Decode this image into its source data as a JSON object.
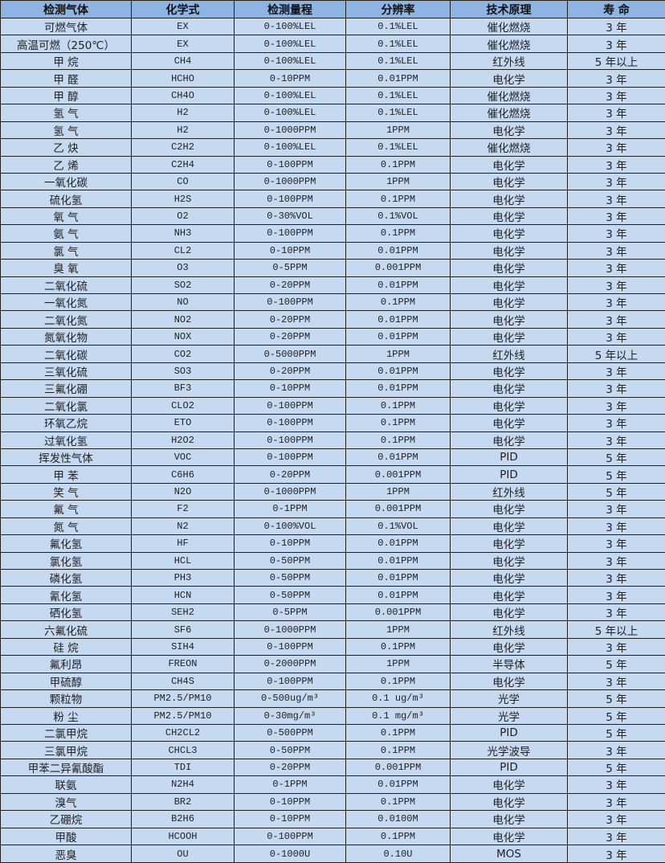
{
  "table": {
    "headers": [
      "检测气体",
      "化学式",
      "检测量程",
      "分辨率",
      "技术原理",
      "寿  命"
    ],
    "rows": [
      [
        "可燃气体",
        "EX",
        "0-100%LEL",
        "0.1%LEL",
        "催化燃烧",
        "3 年"
      ],
      [
        "高温可燃（250℃）",
        "EX",
        "0-100%LEL",
        "0.1%LEL",
        "催化燃烧",
        "3 年"
      ],
      [
        "甲 烷",
        "CH4",
        "0-100%LEL",
        "0.1%LEL",
        "红外线",
        "5 年以上"
      ],
      [
        "甲 醛",
        "HCHO",
        "0-10PPM",
        "0.01PPM",
        "电化学",
        "3 年"
      ],
      [
        "甲 醇",
        "CH4O",
        "0-100%LEL",
        "0.1%LEL",
        "催化燃烧",
        "3 年"
      ],
      [
        "氢 气",
        "H2",
        "0-100%LEL",
        "0.1%LEL",
        "催化燃烧",
        "3 年"
      ],
      [
        "氢 气",
        "H2",
        "0-1000PPM",
        "1PPM",
        "电化学",
        "3 年"
      ],
      [
        "乙 炔",
        "C2H2",
        "0-100%LEL",
        "0.1%LEL",
        "催化燃烧",
        "3 年"
      ],
      [
        "乙 烯",
        "C2H4",
        "0-100PPM",
        "0.1PPM",
        "电化学",
        "3 年"
      ],
      [
        "一氧化碳",
        "CO",
        "0-1000PPM",
        "1PPM",
        "电化学",
        "3 年"
      ],
      [
        "硫化氢",
        "H2S",
        "0-100PPM",
        "0.1PPM",
        "电化学",
        "3 年"
      ],
      [
        "氧 气",
        "O2",
        "0-30%VOL",
        "0.1%VOL",
        "电化学",
        "3 年"
      ],
      [
        "氨 气",
        "NH3",
        "0-100PPM",
        "0.1PPM",
        "电化学",
        "3 年"
      ],
      [
        "氯 气",
        "CL2",
        "0-10PPM",
        "0.01PPM",
        "电化学",
        "3 年"
      ],
      [
        "臭 氧",
        "O3",
        "0-5PPM",
        "0.001PPM",
        "电化学",
        "3 年"
      ],
      [
        "二氧化硫",
        "SO2",
        "0-20PPM",
        "0.01PPM",
        "电化学",
        "3 年"
      ],
      [
        "一氧化氮",
        "NO",
        "0-100PPM",
        "0.1PPM",
        "电化学",
        "3 年"
      ],
      [
        "二氧化氮",
        "NO2",
        "0-20PPM",
        "0.01PPM",
        "电化学",
        "3 年"
      ],
      [
        "氮氧化物",
        "NOX",
        "0-20PPM",
        "0.01PPM",
        "电化学",
        "3 年"
      ],
      [
        "二氧化碳",
        "CO2",
        "0-5000PPM",
        "1PPM",
        "红外线",
        "5 年以上"
      ],
      [
        "三氧化硫",
        "SO3",
        "0-20PPM",
        "0.01PPM",
        "电化学",
        "3 年"
      ],
      [
        "三氟化硼",
        "BF3",
        "0-10PPM",
        "0.01PPM",
        "电化学",
        "3 年"
      ],
      [
        "二氧化氯",
        "CLO2",
        "0-100PPM",
        "0.1PPM",
        "电化学",
        "3 年"
      ],
      [
        "环氧乙烷",
        "ETO",
        "0-100PPM",
        "0.1PPM",
        "电化学",
        "3 年"
      ],
      [
        "过氧化氢",
        "H2O2",
        "0-100PPM",
        "0.1PPM",
        "电化学",
        "3 年"
      ],
      [
        "挥发性气体",
        "VOC",
        "0-100PPM",
        "0.01PPM",
        "PID",
        "5 年"
      ],
      [
        "甲 苯",
        "C6H6",
        "0-20PPM",
        "0.001PPM",
        "PID",
        "5 年"
      ],
      [
        "笑 气",
        "N2O",
        "0-1000PPM",
        "1PPM",
        "红外线",
        "5 年"
      ],
      [
        "氟 气",
        "F2",
        "0-1PPM",
        "0.001PPM",
        "电化学",
        "3 年"
      ],
      [
        "氮 气",
        "N2",
        "0-100%VOL",
        "0.1%VOL",
        "电化学",
        "3 年"
      ],
      [
        "氟化氢",
        "HF",
        "0-10PPM",
        "0.01PPM",
        "电化学",
        "3 年"
      ],
      [
        "氯化氢",
        "HCL",
        "0-50PPM",
        "0.01PPM",
        "电化学",
        "3 年"
      ],
      [
        "磷化氢",
        "PH3",
        "0-50PPM",
        "0.01PPM",
        "电化学",
        "3 年"
      ],
      [
        "氰化氢",
        "HCN",
        "0-50PPM",
        "0.01PPM",
        "电化学",
        "3 年"
      ],
      [
        "硒化氢",
        "SEH2",
        "0-5PPM",
        "0.001PPM",
        "电化学",
        "3 年"
      ],
      [
        "六氟化硫",
        "SF6",
        "0-1000PPM",
        "1PPM",
        "红外线",
        "5 年以上"
      ],
      [
        "硅 烷",
        "SIH4",
        "0-100PPM",
        "0.1PPM",
        "电化学",
        "3 年"
      ],
      [
        "氟利昂",
        "FREON",
        "0-2000PPM",
        "1PPM",
        "半导体",
        "5 年"
      ],
      [
        "甲硫醇",
        "CH4S",
        "0-100PPM",
        "0.1PPM",
        "电化学",
        "3 年"
      ],
      [
        "颗粒物",
        "PM2.5/PM10",
        "0-500ug/m³",
        "0.1 ug/m³",
        "光学",
        "5 年"
      ],
      [
        "粉 尘",
        "PM2.5/PM10",
        "0-30mg/m³",
        "0.1 mg/m³",
        "光学",
        "5 年"
      ],
      [
        "二氯甲烷",
        "CH2CL2",
        "0-500PPM",
        "0.1PPM",
        "PID",
        "5 年"
      ],
      [
        "三氯甲烷",
        "CHCL3",
        "0-50PPM",
        "0.1PPM",
        "光学波导",
        "3 年"
      ],
      [
        "甲苯二异氰酸酯",
        "TDI",
        "0-20PPM",
        "0.001PPM",
        "PID",
        "5 年"
      ],
      [
        "联氨",
        "N2H4",
        "0-1PPM",
        "0.01PPM",
        "电化学",
        "3 年"
      ],
      [
        "溴气",
        "BR2",
        "0-10PPM",
        "0.1PPM",
        "电化学",
        "3 年"
      ],
      [
        "乙硼烷",
        "B2H6",
        "0-10PPM",
        "0.0100M",
        "电化学",
        "3 年"
      ],
      [
        "甲酸",
        "HCOOH",
        "0-100PPM",
        "0.1PPM",
        "电化学",
        "3 年"
      ],
      [
        "恶臭",
        "OU",
        "0-1000U",
        "0.10U",
        "MOS",
        "3 年"
      ]
    ]
  },
  "colors": {
    "header_bg": "#8db4e2",
    "row_bg": "#c5d9f1",
    "border": "#1f1f1f"
  }
}
